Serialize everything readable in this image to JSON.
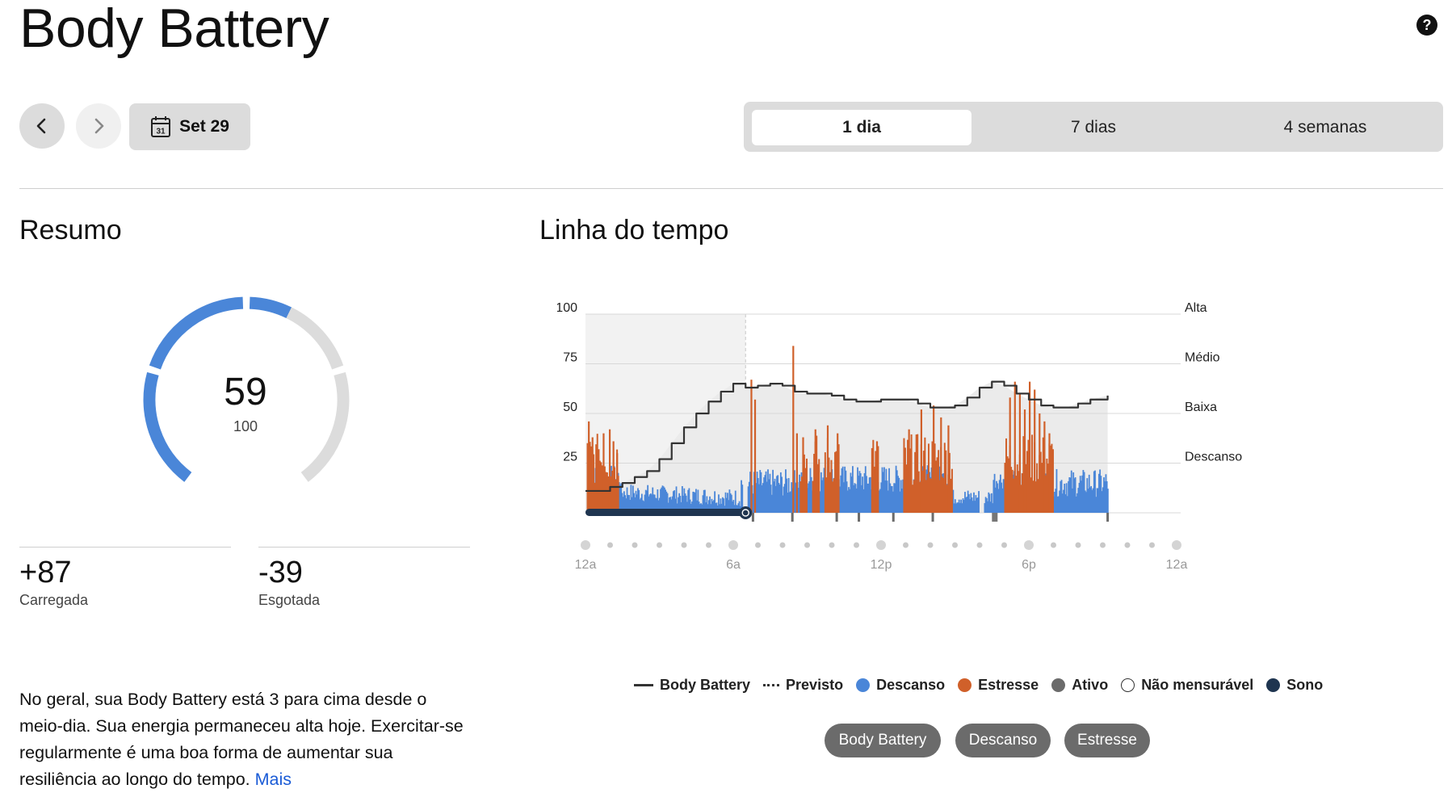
{
  "header": {
    "title": "Body Battery",
    "help_icon": "?"
  },
  "nav": {
    "date_label": "Set 29",
    "calendar_day": "31"
  },
  "range_tabs": [
    {
      "label": "1 dia",
      "active": true
    },
    {
      "label": "7 dias",
      "active": false
    },
    {
      "label": "4 semanas",
      "active": false
    }
  ],
  "summary": {
    "heading": "Resumo",
    "gauge_value": "59",
    "gauge_max": "100",
    "charged_value": "+87",
    "charged_label": "Carregada",
    "drained_value": "-39",
    "drained_label": "Esgotada",
    "text": "No geral, sua Body Battery está 3 para cima desde o meio-dia. Sua energia permaneceu alta hoje. Exercitar-se regularmente é uma boa forma de aumentar sua resiliência ao longo do tempo.",
    "more_link": "Mais"
  },
  "timeline": {
    "heading": "Linha do tempo"
  },
  "colors": {
    "rest": "#4a86d8",
    "stress": "#d0602a",
    "active": "#6b6b6b",
    "sleep": "#1f3550",
    "line": "#333333",
    "gauge_fill": "#4a86d8",
    "gauge_track": "#dcdcdc"
  },
  "chart_data": {
    "type": "bar",
    "title": "Linha do tempo",
    "ylim": [
      0,
      100
    ],
    "yticks": [
      25,
      50,
      75,
      100
    ],
    "ytick_labels": [
      "25",
      "50",
      "75",
      "100"
    ],
    "right_labels": [
      {
        "value": 100,
        "label": "Alta"
      },
      {
        "value": 75,
        "label": "Médio"
      },
      {
        "value": 50,
        "label": "Baixa"
      },
      {
        "value": 25,
        "label": "Descanso"
      }
    ],
    "x_range_hours": [
      0,
      24
    ],
    "x_tick_labels": [
      {
        "hour": 0,
        "label": "12a"
      },
      {
        "hour": 6,
        "label": "6a"
      },
      {
        "hour": 12,
        "label": "12p"
      },
      {
        "hour": 18,
        "label": "6p"
      },
      {
        "hour": 24,
        "label": "12a"
      }
    ],
    "body_battery_series": {
      "name": "Body Battery",
      "hours": [
        0,
        0.5,
        1,
        1.5,
        2,
        2.5,
        3,
        3.5,
        4,
        4.5,
        5,
        5.5,
        6,
        6.25,
        6.5,
        7,
        7.5,
        8,
        8.5,
        9,
        9.5,
        10,
        10.5,
        11,
        11.5,
        12,
        12.5,
        13,
        13.5,
        14,
        14.5,
        15,
        15.5,
        16,
        16.5,
        17,
        17.5,
        18,
        18.5,
        19,
        19.5,
        20,
        20.5,
        21.2
      ],
      "values": [
        11,
        11,
        13,
        15,
        18,
        21,
        27,
        35,
        43,
        50,
        56,
        61,
        65,
        65,
        63,
        64,
        65,
        64,
        61,
        60,
        60,
        59,
        57,
        56,
        56,
        57,
        57,
        57,
        55,
        53,
        53,
        54,
        58,
        63,
        66,
        64,
        60,
        57,
        54,
        53,
        53,
        55,
        57,
        59
      ]
    },
    "sleep_interval_hours": [
      0,
      6.5
    ],
    "marker_hour": 6.5,
    "active_markers_hours": [
      6.8,
      8.4,
      10.2,
      11.1,
      12.5,
      14.1,
      16.6,
      21.2
    ],
    "descanso_bars": {
      "start_hour": 0.1,
      "end_hour": 21.2,
      "description": "High-density rest bars (0-25 range) across the day"
    },
    "estresse_spikes": [
      {
        "hour": 0.1,
        "value": 46
      },
      {
        "hour": 0.25,
        "value": 38
      },
      {
        "hour": 0.5,
        "value": 32
      },
      {
        "hour": 0.7,
        "value": 40
      },
      {
        "hour": 0.95,
        "value": 42
      },
      {
        "hour": 1.1,
        "value": 36
      },
      {
        "hour": 1.25,
        "value": 30
      },
      {
        "hour": 6.7,
        "value": 67
      },
      {
        "hour": 6.85,
        "value": 57
      },
      {
        "hour": 8.4,
        "value": 84
      },
      {
        "hour": 8.55,
        "value": 40
      },
      {
        "hour": 8.8,
        "value": 38
      },
      {
        "hour": 9.3,
        "value": 42
      },
      {
        "hour": 9.8,
        "value": 44
      },
      {
        "hour": 10.2,
        "value": 40
      },
      {
        "hour": 11.8,
        "value": 36
      },
      {
        "hour": 13.1,
        "value": 42
      },
      {
        "hour": 13.6,
        "value": 52
      },
      {
        "hour": 14.1,
        "value": 54
      },
      {
        "hour": 14.4,
        "value": 48
      },
      {
        "hour": 14.7,
        "value": 44
      },
      {
        "hour": 17.2,
        "value": 58
      },
      {
        "hour": 17.4,
        "value": 66
      },
      {
        "hour": 17.6,
        "value": 60
      },
      {
        "hour": 17.8,
        "value": 52
      },
      {
        "hour": 18.0,
        "value": 66
      },
      {
        "hour": 18.2,
        "value": 62
      },
      {
        "hour": 18.4,
        "value": 50
      },
      {
        "hour": 18.6,
        "value": 46
      },
      {
        "hour": 18.8,
        "value": 40
      }
    ],
    "legend": [
      {
        "key": "line",
        "label": "Body Battery"
      },
      {
        "key": "dashed",
        "label": "Previsto"
      },
      {
        "key": "rest",
        "label": "Descanso"
      },
      {
        "key": "stress",
        "label": "Estresse"
      },
      {
        "key": "active",
        "label": "Ativo"
      },
      {
        "key": "unmeasured",
        "label": "Não mensurável"
      },
      {
        "key": "sleep",
        "label": "Sono"
      }
    ],
    "toggle_buttons": [
      "Body Battery",
      "Descanso",
      "Estresse"
    ]
  }
}
